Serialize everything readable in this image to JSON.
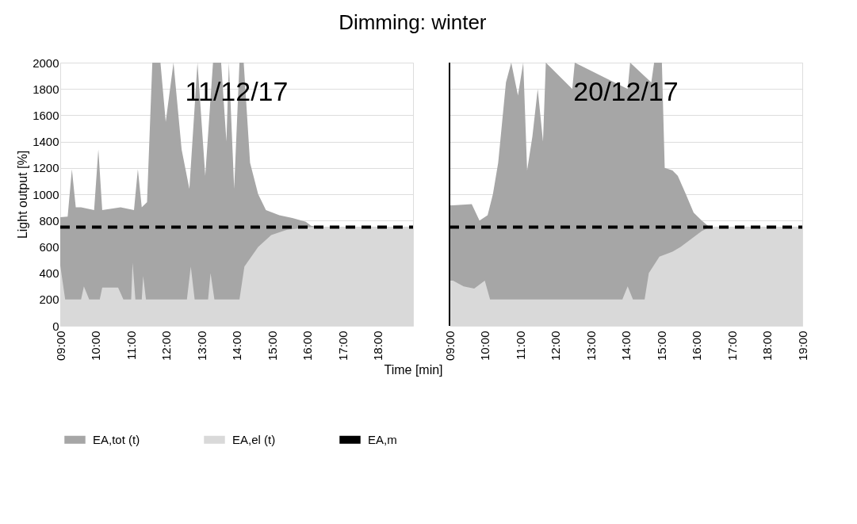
{
  "chart_data": [
    {
      "type": "area",
      "title": "Dimming: winter",
      "xlabel": "Time [min]",
      "ylabel": "Light output [%]",
      "xlim": [
        9,
        19
      ],
      "ylim": [
        0,
        2000
      ],
      "xticks": [
        {
          "value": 9,
          "label": "09:00"
        },
        {
          "value": 10,
          "label": "10:00"
        },
        {
          "value": 11,
          "label": "11:00"
        },
        {
          "value": 12,
          "label": "12:00"
        },
        {
          "value": 13,
          "label": "13:00"
        },
        {
          "value": 14,
          "label": "14:00"
        },
        {
          "value": 15,
          "label": "15:00"
        },
        {
          "value": 16,
          "label": "16:00"
        },
        {
          "value": 17,
          "label": "17:00"
        },
        {
          "value": 18,
          "label": "18:00"
        }
      ],
      "yticks": [
        0,
        200,
        400,
        600,
        800,
        1000,
        1200,
        1400,
        1600,
        1800,
        2000
      ],
      "grid": "y",
      "legend": "bottom",
      "annotations": [
        "11/12/17"
      ],
      "series": [
        {
          "name": "EA,tot (t)",
          "color": "#a6a6a6",
          "x": [
            9.0,
            9.21,
            9.33,
            9.44,
            9.59,
            9.96,
            10.08,
            10.19,
            10.71,
            11.09,
            11.2,
            11.31,
            11.46,
            11.61,
            11.84,
            11.99,
            12.21,
            12.44,
            12.66,
            12.89,
            13.11,
            13.33,
            13.56,
            13.71,
            13.78,
            13.93,
            14.08,
            14.2,
            14.38,
            14.61,
            14.83,
            15.21,
            15.58,
            15.96,
            16.11,
            16.33,
            19.0
          ],
          "values": [
            825,
            830,
            1190,
            900,
            900,
            880,
            1340,
            880,
            900,
            880,
            1190,
            900,
            940,
            2000,
            2000,
            1550,
            2000,
            1340,
            1040,
            2000,
            1140,
            2000,
            2000,
            1400,
            2000,
            1040,
            2000,
            2000,
            1240,
            1000,
            880,
            840,
            820,
            790,
            760,
            750,
            750
          ]
        },
        {
          "name": "EA,el (t)",
          "color": "#d9d9d9",
          "x": [
            9.0,
            9.14,
            9.59,
            9.67,
            9.82,
            10.12,
            10.19,
            10.64,
            10.79,
            11.01,
            11.05,
            11.13,
            11.31,
            11.35,
            11.43,
            12.59,
            12.7,
            12.81,
            13.19,
            13.26,
            13.37,
            14.08,
            14.22,
            14.61,
            14.98,
            15.43,
            16.11,
            19.0
          ],
          "values": [
            460,
            200,
            200,
            300,
            200,
            200,
            290,
            290,
            200,
            200,
            480,
            200,
            200,
            380,
            200,
            200,
            450,
            200,
            200,
            400,
            200,
            200,
            450,
            600,
            690,
            730,
            750,
            750
          ]
        },
        {
          "name": "EA,m",
          "type": "line",
          "color": "#000000",
          "line_style": "dashed",
          "x": [
            9,
            19
          ],
          "values": [
            750,
            750
          ]
        }
      ]
    },
    {
      "type": "area",
      "xlim": [
        9,
        19
      ],
      "ylim": [
        0,
        2000
      ],
      "xticks": [
        {
          "value": 9,
          "label": "09:00"
        },
        {
          "value": 10,
          "label": "10:00"
        },
        {
          "value": 11,
          "label": "11:00"
        },
        {
          "value": 12,
          "label": "12:00"
        },
        {
          "value": 13,
          "label": "13:00"
        },
        {
          "value": 14,
          "label": "14:00"
        },
        {
          "value": 15,
          "label": "15:00"
        },
        {
          "value": 16,
          "label": "16:00"
        },
        {
          "value": 17,
          "label": "17:00"
        },
        {
          "value": 18,
          "label": "18:00"
        },
        {
          "value": 19,
          "label": "19:00"
        }
      ],
      "yticks": [
        0,
        200,
        400,
        600,
        800,
        1000,
        1200,
        1400,
        1600,
        1800,
        2000
      ],
      "tick_labels": "x",
      "grid": "y",
      "annotations": [
        "20/12/17"
      ],
      "ref_lines": [
        {
          "axis": "x",
          "value": 9,
          "color": "#000000"
        }
      ],
      "series": [
        {
          "color": "#a6a6a6",
          "x": [
            9.0,
            9.1,
            9.63,
            9.85,
            10.08,
            10.23,
            10.38,
            10.6,
            10.75,
            10.94,
            11.09,
            11.2,
            11.35,
            11.5,
            11.65,
            11.73,
            12.48,
            12.55,
            14.05,
            14.12,
            14.72,
            14.8,
            15.02,
            15.1,
            15.32,
            15.47,
            15.7,
            15.92,
            16.15,
            16.37,
            19.0
          ],
          "values": [
            916,
            916,
            925,
            800,
            840,
            1000,
            1240,
            1850,
            2000,
            1750,
            2000,
            1180,
            1440,
            1800,
            1400,
            2000,
            1800,
            2000,
            1800,
            2000,
            1850,
            2000,
            2000,
            1200,
            1180,
            1140,
            1000,
            860,
            800,
            750,
            750
          ]
        },
        {
          "color": "#d9d9d9",
          "x": [
            9.0,
            9.1,
            9.4,
            9.7,
            10.0,
            10.15,
            13.9,
            14.05,
            14.2,
            14.53,
            14.65,
            14.95,
            15.32,
            15.55,
            15.85,
            16.15,
            16.37,
            19.0
          ],
          "values": [
            343,
            343,
            300,
            283,
            343,
            200,
            200,
            300,
            200,
            200,
            400,
            525,
            563,
            600,
            660,
            720,
            750,
            750
          ]
        },
        {
          "type": "line",
          "color": "#000000",
          "line_style": "dashed",
          "x": [
            9,
            19
          ],
          "values": [
            750,
            750
          ]
        }
      ]
    }
  ]
}
